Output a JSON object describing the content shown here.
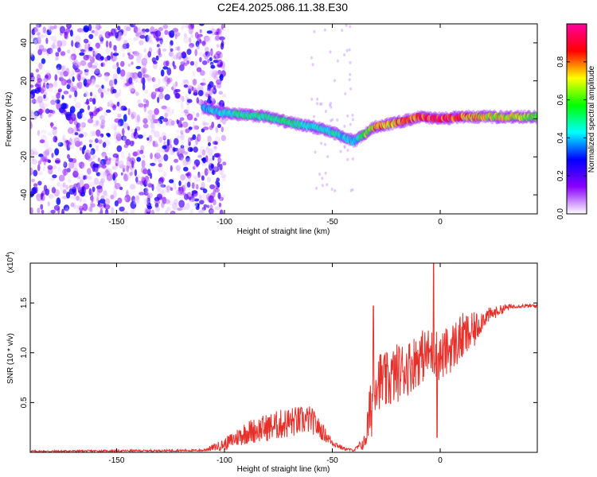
{
  "title": "C2E4.2025.086.11.38.E30",
  "charts": [
    {
      "type": "heatmap",
      "xlabel": "Height of straight line (km)",
      "ylabel": "Frequency (Hz)",
      "xlim": [
        -190,
        45
      ],
      "ylim": [
        -50,
        50
      ],
      "xticks": [
        -150,
        -100,
        -50,
        0
      ],
      "yticks": [
        -40,
        -20,
        0,
        20,
        40
      ],
      "colorbar": {
        "label": "Normalized spectral amplitude",
        "range": [
          0.0,
          1.0
        ],
        "ticks": [
          "0.0",
          "0.2",
          "0.4",
          "0.6",
          "0.8"
        ],
        "tick_values": [
          0.0,
          0.2,
          0.4,
          0.6,
          0.8
        ],
        "colors": [
          "#ffffff",
          "#8a00ff",
          "#0000ff",
          "#00ffff",
          "#00ff00",
          "#ffff00",
          "#ff0000",
          "#ff00a0"
        ]
      },
      "noise_region": {
        "x": [
          -190,
          -100
        ],
        "f": [
          -50,
          50
        ],
        "amplitude": [
          0.02,
          0.25
        ]
      },
      "signal_track": [
        {
          "x": -110,
          "f": 6,
          "a": 0.4
        },
        {
          "x": -100,
          "f": 3,
          "a": 0.45
        },
        {
          "x": -90,
          "f": 2,
          "a": 0.5
        },
        {
          "x": -80,
          "f": 1,
          "a": 0.5
        },
        {
          "x": -70,
          "f": -2,
          "a": 0.5
        },
        {
          "x": -60,
          "f": -4,
          "a": 0.45
        },
        {
          "x": -50,
          "f": -7,
          "a": 0.45
        },
        {
          "x": -40,
          "f": -12,
          "a": 0.4
        },
        {
          "x": -30,
          "f": -4,
          "a": 0.75
        },
        {
          "x": -20,
          "f": -2,
          "a": 0.75
        },
        {
          "x": -10,
          "f": 1,
          "a": 0.8
        },
        {
          "x": 0,
          "f": 0,
          "a": 0.9
        },
        {
          "x": 10,
          "f": 1,
          "a": 0.8
        },
        {
          "x": 20,
          "f": 1,
          "a": 0.7
        },
        {
          "x": 30,
          "f": 1,
          "a": 0.7
        },
        {
          "x": 45,
          "f": 1,
          "a": 0.6
        }
      ]
    },
    {
      "type": "line",
      "xlabel": "Height of straight line (km)",
      "ylabel": "SNR (10 * v/v)",
      "multiplier": "(x10",
      "multiplier_exp": "4",
      "multiplier_close": ")",
      "xlim": [
        -190,
        45
      ],
      "ylim": [
        0,
        1.9
      ],
      "xticks": [
        -150,
        -100,
        -50,
        0
      ],
      "yticks": [
        0.5,
        1.0,
        1.5
      ],
      "ytick_labels": [
        "0.5",
        "1.0",
        "1.5"
      ],
      "color": "#e8302a",
      "envelope": {
        "x": [
          -190,
          -110,
          -100,
          -90,
          -80,
          -70,
          -60,
          -50,
          -45,
          -40,
          -35,
          -32,
          -30,
          -25,
          -20,
          -15,
          -10,
          -5,
          -2,
          0,
          5,
          10,
          15,
          20,
          25,
          30,
          35,
          45
        ],
        "y": [
          0.01,
          0.02,
          0.08,
          0.2,
          0.25,
          0.3,
          0.33,
          0.1,
          0.04,
          0.02,
          0.1,
          0.45,
          0.75,
          0.7,
          0.8,
          0.85,
          0.95,
          1.0,
          1.0,
          0.95,
          1.05,
          1.15,
          1.2,
          1.35,
          1.4,
          1.45,
          1.47,
          1.47
        ],
        "jitter": [
          0.01,
          0.01,
          0.06,
          0.12,
          0.14,
          0.16,
          0.14,
          0.04,
          0.02,
          0.01,
          0.08,
          0.35,
          0.3,
          0.3,
          0.3,
          0.28,
          0.28,
          0.25,
          0.25,
          0.25,
          0.25,
          0.25,
          0.2,
          0.1,
          0.06,
          0.04,
          0.02,
          0.02
        ]
      },
      "spikes": [
        {
          "x": -31,
          "y": 1.47
        },
        {
          "x": -3,
          "y": 1.92
        },
        {
          "x": -1.5,
          "y": 0.15
        }
      ]
    }
  ]
}
